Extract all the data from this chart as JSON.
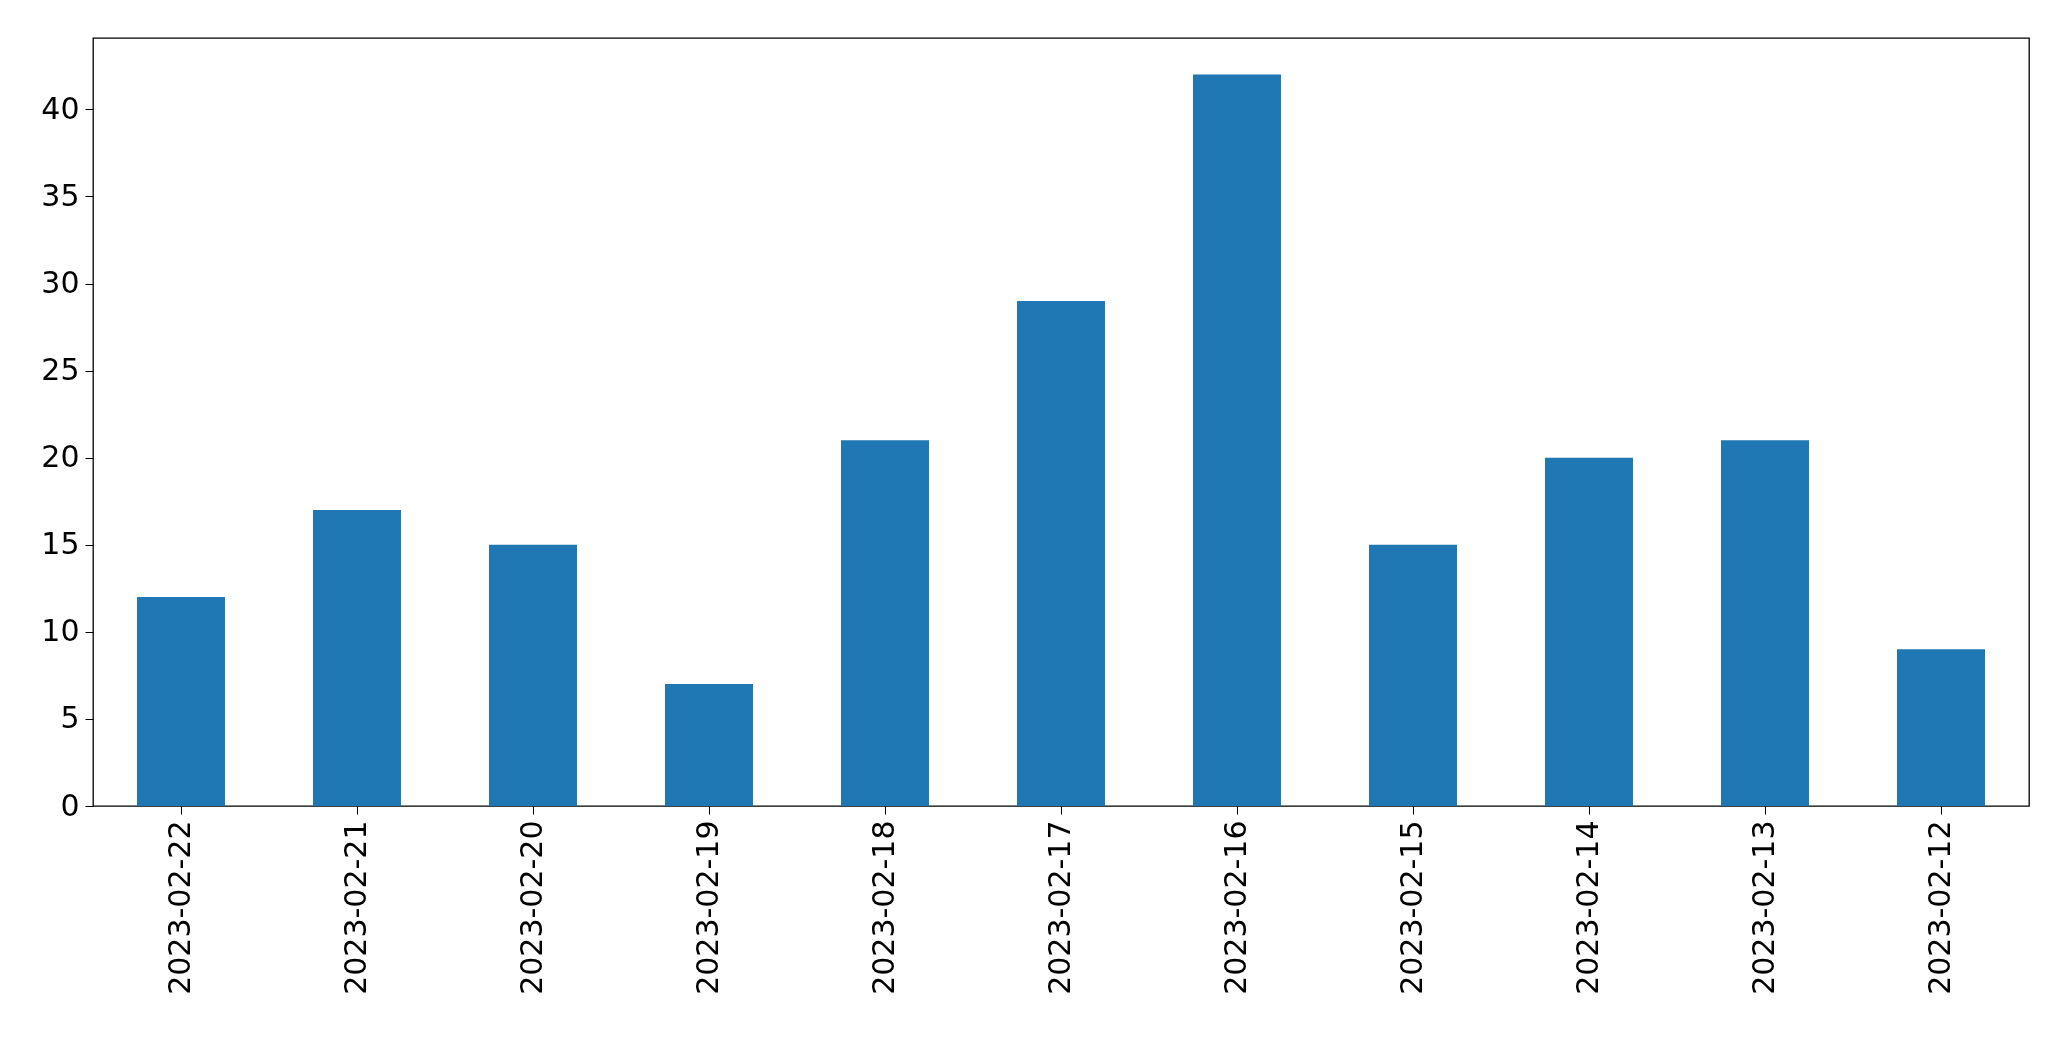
{
  "chart_data": {
    "type": "bar",
    "categories": [
      "2023-02-22",
      "2023-02-21",
      "2023-02-20",
      "2023-02-19",
      "2023-02-18",
      "2023-02-17",
      "2023-02-16",
      "2023-02-15",
      "2023-02-14",
      "2023-02-13",
      "2023-02-12"
    ],
    "values": [
      12,
      17,
      15,
      7,
      21,
      29,
      42,
      15,
      20,
      21,
      9
    ],
    "color": "#1f77b4",
    "ylim": [
      0,
      44.1
    ],
    "yticks": [
      0,
      5,
      10,
      15,
      20,
      25,
      30,
      35,
      40
    ],
    "grid": false
  }
}
